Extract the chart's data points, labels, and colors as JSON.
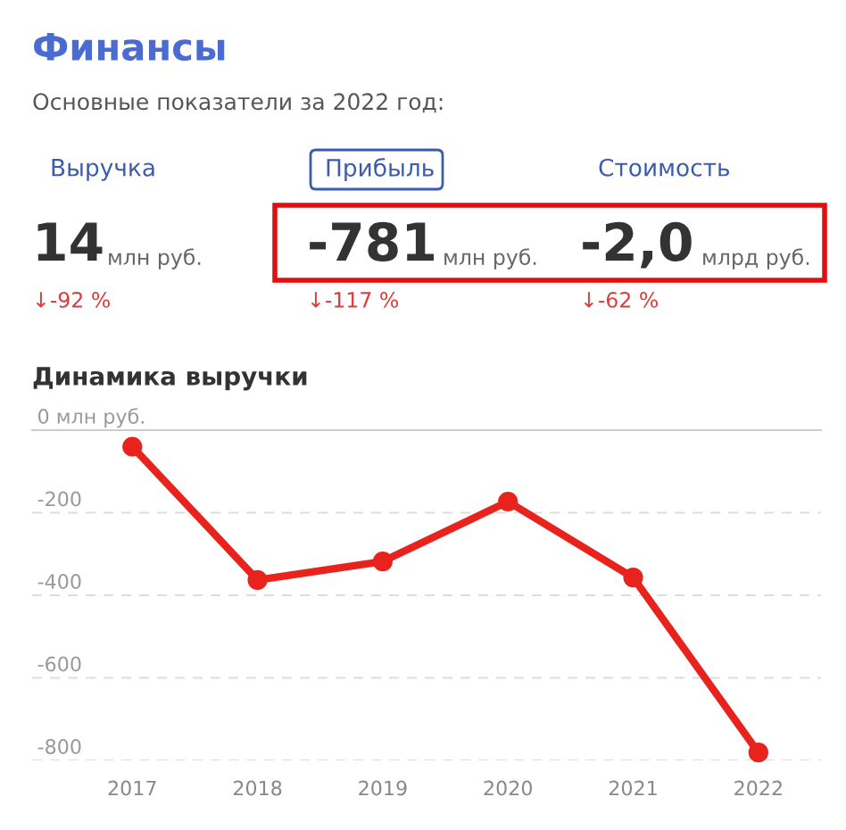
{
  "chart_data": [
    {
      "type": "other",
      "title": "Финансы",
      "subtitle": "Основные показатели за 2022 год:",
      "annotations": [
        "Выручка",
        "14",
        "млн руб.",
        "↓-92 %",
        "Прибыль",
        "-781",
        "млн руб.",
        "↓-117 %",
        "Стоимость",
        "-2,0",
        "млрд руб.",
        "↓-62 %"
      ]
    },
    {
      "type": "line",
      "title": "Динамика выручки",
      "categories": [
        "2017",
        "2018",
        "2019",
        "2020",
        "2021",
        "2022"
      ],
      "series": [
        {
          "color": "#e8231e",
          "values": [
            -40,
            -363,
            -318,
            -173,
            -357,
            -781
          ]
        }
      ],
      "ylim": [
        -800,
        0
      ],
      "yticks": [
        {
          "value": 0,
          "label": "0 млн руб."
        },
        -200,
        -400,
        -600,
        -800
      ],
      "grid": "y",
      "marker": "circle",
      "line_style": "solid"
    }
  ]
}
